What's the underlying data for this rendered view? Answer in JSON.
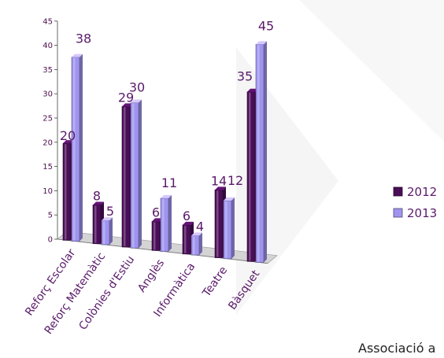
{
  "chart_data": {
    "type": "bar",
    "categories": [
      "Reforç Escolar",
      "Reforç Matemàtic",
      "Colònies d'Estiu",
      "Anglès",
      "Informàtica",
      "Teatre",
      "Bàsquet"
    ],
    "series": [
      {
        "name": "2012",
        "values": [
          20,
          8,
          29,
          6,
          6,
          14,
          35
        ],
        "color": "#4a0d58"
      },
      {
        "name": "2013",
        "values": [
          38,
          5,
          30,
          11,
          4,
          12,
          45
        ],
        "color": "#9f94ee"
      }
    ],
    "y_ticks": [
      "0",
      "5",
      "10",
      "15",
      "20",
      "25",
      "30",
      "35",
      "40",
      "45"
    ],
    "ylim": [
      0,
      45
    ],
    "legend_position": "right",
    "three_d": true
  },
  "footer": {
    "text": "Associació a"
  }
}
